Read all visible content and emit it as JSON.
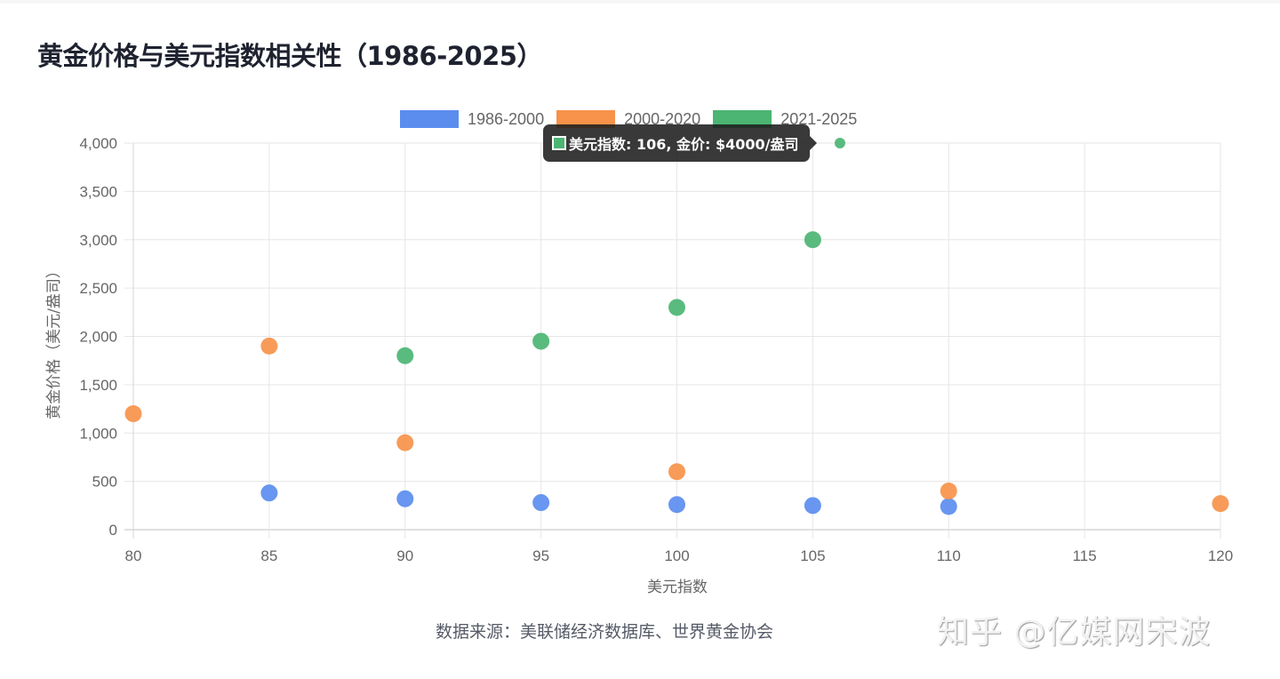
{
  "page": {
    "title": "黄金价格与美元指数相关性（1986-2025）",
    "source": "数据来源：美联储经济数据库、世界黄金协会",
    "watermark": "知乎 @亿媒网宋波"
  },
  "legend": [
    {
      "label": "1986-2000",
      "color": "#5b8def"
    },
    {
      "label": "2000-2020",
      "color": "#f7924a"
    },
    {
      "label": "2021-2025",
      "color": "#4cb573"
    }
  ],
  "tooltip": {
    "text": "美元指数: 106, 金价: $4000/盎司",
    "color": "#4cb573"
  },
  "chart_data": {
    "type": "scatter",
    "title": "黄金价格与美元指数相关性（1986-2025）",
    "xlabel": "美元指数",
    "ylabel": "黄金价格（美元/盎司）",
    "xlim": [
      80,
      120
    ],
    "ylim": [
      0,
      4000
    ],
    "x_ticks": [
      "80",
      "85",
      "90",
      "95",
      "100",
      "105",
      "110",
      "115",
      "120"
    ],
    "y_ticks": [
      "0",
      "500",
      "1,000",
      "1,500",
      "2,000",
      "2,500",
      "3,000",
      "3,500",
      "4,000"
    ],
    "grid": true,
    "legend_position": "top",
    "series": [
      {
        "name": "1986-2000",
        "color": "#5b8def",
        "points": [
          [
            85,
            380
          ],
          [
            90,
            320
          ],
          [
            95,
            280
          ],
          [
            100,
            260
          ],
          [
            105,
            250
          ],
          [
            110,
            240
          ]
        ]
      },
      {
        "name": "2000-2020",
        "color": "#f7924a",
        "points": [
          [
            80,
            1200
          ],
          [
            85,
            1900
          ],
          [
            90,
            900
          ],
          [
            100,
            600
          ],
          [
            110,
            400
          ],
          [
            120,
            270
          ]
        ]
      },
      {
        "name": "2021-2025",
        "color": "#4cb573",
        "points": [
          [
            90,
            1800
          ],
          [
            95,
            1950
          ],
          [
            100,
            2300
          ],
          [
            105,
            3000
          ],
          [
            106,
            4000
          ]
        ]
      }
    ],
    "annotations": [
      {
        "type": "tooltip",
        "text": "美元指数: 106, 金价: $4000/盎司",
        "point": [
          106,
          4000
        ]
      }
    ]
  }
}
